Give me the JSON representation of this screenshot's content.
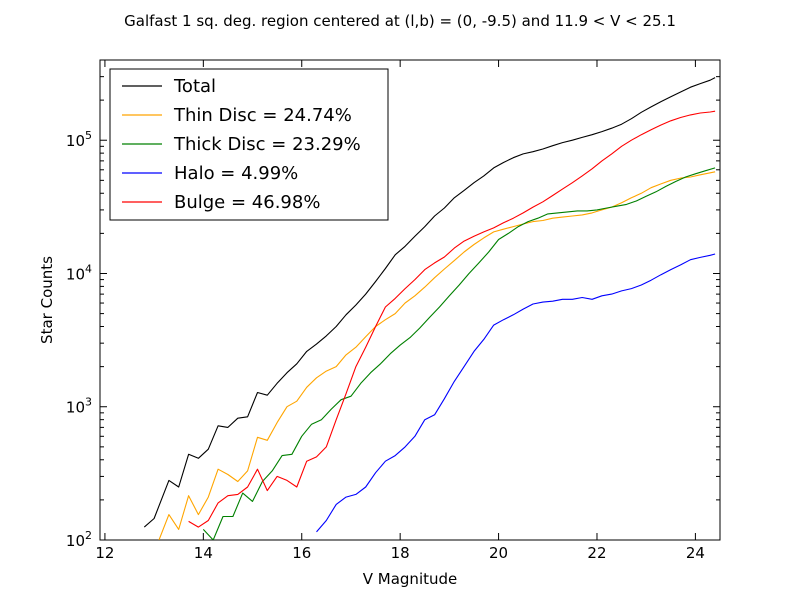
{
  "chart_data": {
    "type": "line",
    "title": "Galfast 1 sq. deg. region centered at (l,b) = (0, -9.5) and 11.9 < V < 25.1",
    "xlabel": "V Magnitude",
    "ylabel": "Star Counts",
    "xlim": [
      11.9,
      24.5
    ],
    "ylim": [
      100,
      400000
    ],
    "yscale": "log",
    "x_ticks": [
      "12",
      "14",
      "16",
      "18",
      "20",
      "22",
      "24"
    ],
    "y_ticks": [
      {
        "base": "10",
        "exp": "2",
        "value": 100
      },
      {
        "base": "10",
        "exp": "3",
        "value": 1000
      },
      {
        "base": "10",
        "exp": "4",
        "value": 10000
      },
      {
        "base": "10",
        "exp": "5",
        "value": 100000
      }
    ],
    "grid": false,
    "legend_position": "top-left",
    "series": [
      {
        "name": "Total",
        "color": "#000000",
        "x": [
          12.8,
          13.0,
          13.3,
          13.5,
          13.7,
          13.9,
          14.1,
          14.3,
          14.5,
          14.7,
          14.9,
          15.1,
          15.3,
          15.5,
          15.7,
          15.9,
          16.1,
          16.3,
          16.5,
          16.7,
          16.9,
          17.1,
          17.3,
          17.5,
          17.7,
          17.9,
          18.1,
          18.3,
          18.5,
          18.7,
          18.9,
          19.1,
          19.3,
          19.5,
          19.7,
          19.9,
          20.1,
          20.3,
          20.5,
          20.7,
          20.9,
          21.1,
          21.3,
          21.5,
          21.7,
          21.9,
          22.1,
          22.3,
          22.5,
          22.7,
          22.9,
          23.1,
          23.3,
          23.5,
          23.7,
          23.9,
          24.1,
          24.3,
          24.4
        ],
        "y": [
          125,
          145,
          280,
          250,
          440,
          410,
          480,
          720,
          700,
          820,
          840,
          1280,
          1220,
          1500,
          1800,
          2100,
          2600,
          2950,
          3400,
          4000,
          4900,
          5800,
          7000,
          8700,
          10900,
          13800,
          16000,
          19000,
          22500,
          27000,
          31000,
          37000,
          42000,
          48000,
          54000,
          62000,
          68000,
          74000,
          79000,
          82000,
          86000,
          91000,
          96000,
          100000,
          105000,
          110000,
          116000,
          123000,
          132000,
          145000,
          162000,
          178000,
          195000,
          212000,
          230000,
          250000,
          266000,
          282000,
          295000
        ]
      },
      {
        "name": "Thin Disc = 24.74%",
        "color": "#ffa500",
        "x": [
          13.1,
          13.3,
          13.5,
          13.7,
          13.9,
          14.1,
          14.3,
          14.5,
          14.7,
          14.9,
          15.1,
          15.3,
          15.5,
          15.7,
          15.9,
          16.1,
          16.3,
          16.5,
          16.7,
          16.9,
          17.1,
          17.3,
          17.5,
          17.7,
          17.9,
          18.1,
          18.3,
          18.5,
          18.7,
          18.9,
          19.1,
          19.3,
          19.5,
          19.7,
          19.9,
          20.1,
          20.3,
          20.5,
          20.7,
          20.9,
          21.1,
          21.3,
          21.5,
          21.7,
          21.9,
          22.1,
          22.3,
          22.5,
          22.7,
          22.9,
          23.1,
          23.3,
          23.5,
          23.7,
          23.9,
          24.1,
          24.3,
          24.4
        ],
        "y": [
          100,
          155,
          120,
          215,
          155,
          210,
          340,
          310,
          275,
          330,
          590,
          560,
          760,
          1000,
          1100,
          1400,
          1650,
          1850,
          2000,
          2450,
          2800,
          3350,
          4000,
          4500,
          5000,
          6000,
          6800,
          7900,
          9300,
          10800,
          12500,
          14500,
          16500,
          18500,
          20500,
          21500,
          22500,
          23500,
          24500,
          25000,
          26000,
          26500,
          27000,
          27500,
          28500,
          30000,
          31500,
          34000,
          37000,
          40000,
          44000,
          47000,
          50000,
          52000,
          53000,
          55000,
          57000,
          58000
        ]
      },
      {
        "name": "Thick Disc = 23.29%",
        "color": "#008000",
        "x": [
          14.0,
          14.2,
          14.4,
          14.6,
          14.8,
          15.0,
          15.2,
          15.4,
          15.6,
          15.8,
          16.0,
          16.2,
          16.4,
          16.6,
          16.8,
          17.0,
          17.2,
          17.4,
          17.6,
          17.8,
          18.0,
          18.2,
          18.4,
          18.6,
          18.8,
          19.0,
          19.2,
          19.4,
          19.6,
          19.8,
          20.0,
          20.2,
          20.4,
          20.6,
          20.8,
          21.0,
          21.2,
          21.4,
          21.6,
          21.8,
          22.0,
          22.2,
          22.4,
          22.6,
          22.8,
          23.0,
          23.2,
          23.4,
          23.6,
          23.8,
          24.0,
          24.2,
          24.4
        ],
        "y": [
          120,
          100,
          150,
          150,
          225,
          195,
          275,
          330,
          430,
          440,
          600,
          740,
          800,
          960,
          1130,
          1200,
          1500,
          1800,
          2100,
          2500,
          2900,
          3300,
          3900,
          4700,
          5600,
          6800,
          8200,
          10000,
          12000,
          14500,
          18000,
          20000,
          22500,
          24500,
          26000,
          28000,
          28500,
          29000,
          29500,
          29500,
          30000,
          31000,
          32000,
          33000,
          35000,
          38000,
          41000,
          45000,
          49000,
          53000,
          56000,
          59000,
          62000
        ]
      },
      {
        "name": "Halo = 4.99%",
        "color": "#0000ff",
        "x": [
          16.3,
          16.5,
          16.7,
          16.9,
          17.1,
          17.3,
          17.5,
          17.7,
          17.9,
          18.1,
          18.3,
          18.5,
          18.7,
          18.9,
          19.1,
          19.3,
          19.5,
          19.7,
          19.9,
          20.1,
          20.3,
          20.5,
          20.7,
          20.9,
          21.1,
          21.3,
          21.5,
          21.7,
          21.9,
          22.1,
          22.3,
          22.5,
          22.7,
          22.9,
          23.1,
          23.3,
          23.5,
          23.7,
          23.9,
          24.1,
          24.3,
          24.4
        ],
        "y": [
          115,
          140,
          185,
          210,
          220,
          250,
          320,
          390,
          430,
          500,
          600,
          800,
          870,
          1150,
          1550,
          2000,
          2600,
          3200,
          4100,
          4500,
          4900,
          5400,
          5900,
          6100,
          6200,
          6400,
          6400,
          6600,
          6400,
          6800,
          7000,
          7400,
          7700,
          8200,
          8900,
          9800,
          10700,
          11600,
          12700,
          13200,
          13700,
          14000
        ]
      },
      {
        "name": "Bulge = 46.98%",
        "color": "#ff0000",
        "x": [
          13.7,
          13.9,
          14.1,
          14.3,
          14.5,
          14.7,
          14.9,
          15.1,
          15.3,
          15.5,
          15.7,
          15.9,
          16.1,
          16.3,
          16.5,
          16.7,
          16.9,
          17.1,
          17.3,
          17.5,
          17.7,
          17.9,
          18.1,
          18.3,
          18.5,
          18.7,
          18.9,
          19.1,
          19.3,
          19.5,
          19.7,
          19.9,
          20.1,
          20.3,
          20.5,
          20.7,
          20.9,
          21.1,
          21.3,
          21.5,
          21.7,
          21.9,
          22.1,
          22.3,
          22.5,
          22.7,
          22.9,
          23.1,
          23.3,
          23.5,
          23.7,
          23.9,
          24.1,
          24.3,
          24.4
        ],
        "y": [
          138,
          125,
          140,
          190,
          215,
          220,
          250,
          340,
          235,
          300,
          280,
          250,
          390,
          420,
          500,
          800,
          1250,
          2000,
          2800,
          4000,
          5600,
          6500,
          7700,
          9000,
          10700,
          12000,
          13300,
          15500,
          17500,
          19000,
          20500,
          22000,
          24000,
          26000,
          28500,
          31500,
          34500,
          38500,
          43000,
          48000,
          54000,
          61000,
          70000,
          79000,
          90000,
          100000,
          110000,
          120000,
          130000,
          140000,
          148000,
          155000,
          160000,
          163000,
          165000
        ]
      }
    ]
  }
}
